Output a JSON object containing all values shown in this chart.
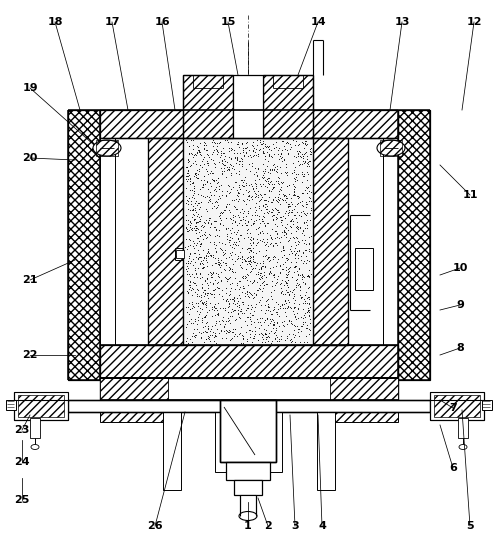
{
  "fig_width": 4.96,
  "fig_height": 5.44,
  "dpi": 100,
  "bg_color": "#ffffff",
  "label_fontsize": 8,
  "label_fontweight": "bold",
  "labels_info": {
    "1": {
      "lpos": [
        248,
        526
      ],
      "ppos": [
        248,
        502
      ]
    },
    "2": {
      "lpos": [
        268,
        526
      ],
      "ppos": [
        258,
        498
      ]
    },
    "3": {
      "lpos": [
        295,
        526
      ],
      "ppos": [
        290,
        415
      ]
    },
    "4": {
      "lpos": [
        322,
        526
      ],
      "ppos": [
        318,
        415
      ]
    },
    "5": {
      "lpos": [
        470,
        526
      ],
      "ppos": [
        462,
        410
      ]
    },
    "6": {
      "lpos": [
        453,
        468
      ],
      "ppos": [
        440,
        425
      ]
    },
    "7": {
      "lpos": [
        453,
        408
      ],
      "ppos": [
        440,
        400
      ]
    },
    "8": {
      "lpos": [
        460,
        348
      ],
      "ppos": [
        440,
        355
      ]
    },
    "9": {
      "lpos": [
        460,
        305
      ],
      "ppos": [
        440,
        310
      ]
    },
    "10": {
      "lpos": [
        460,
        268
      ],
      "ppos": [
        440,
        275
      ]
    },
    "11": {
      "lpos": [
        470,
        195
      ],
      "ppos": [
        440,
        165
      ]
    },
    "12": {
      "lpos": [
        474,
        22
      ],
      "ppos": [
        462,
        110
      ]
    },
    "13": {
      "lpos": [
        402,
        22
      ],
      "ppos": [
        390,
        110
      ]
    },
    "14": {
      "lpos": [
        318,
        22
      ],
      "ppos": [
        298,
        75
      ]
    },
    "15": {
      "lpos": [
        228,
        22
      ],
      "ppos": [
        238,
        75
      ]
    },
    "16": {
      "lpos": [
        162,
        22
      ],
      "ppos": [
        175,
        110
      ]
    },
    "17": {
      "lpos": [
        112,
        22
      ],
      "ppos": [
        128,
        110
      ]
    },
    "18": {
      "lpos": [
        55,
        22
      ],
      "ppos": [
        80,
        110
      ]
    },
    "19": {
      "lpos": [
        30,
        88
      ],
      "ppos": [
        94,
        145
      ]
    },
    "20": {
      "lpos": [
        30,
        158
      ],
      "ppos": [
        75,
        160
      ]
    },
    "21": {
      "lpos": [
        30,
        280
      ],
      "ppos": [
        75,
        260
      ]
    },
    "22": {
      "lpos": [
        30,
        355
      ],
      "ppos": [
        75,
        355
      ]
    },
    "23": {
      "lpos": [
        22,
        430
      ],
      "ppos": [
        30,
        415
      ]
    },
    "24": {
      "lpos": [
        22,
        462
      ],
      "ppos": [
        22,
        440
      ]
    },
    "25": {
      "lpos": [
        22,
        500
      ],
      "ppos": [
        22,
        478
      ]
    },
    "26": {
      "lpos": [
        155,
        526
      ],
      "ppos": [
        185,
        412
      ]
    }
  }
}
